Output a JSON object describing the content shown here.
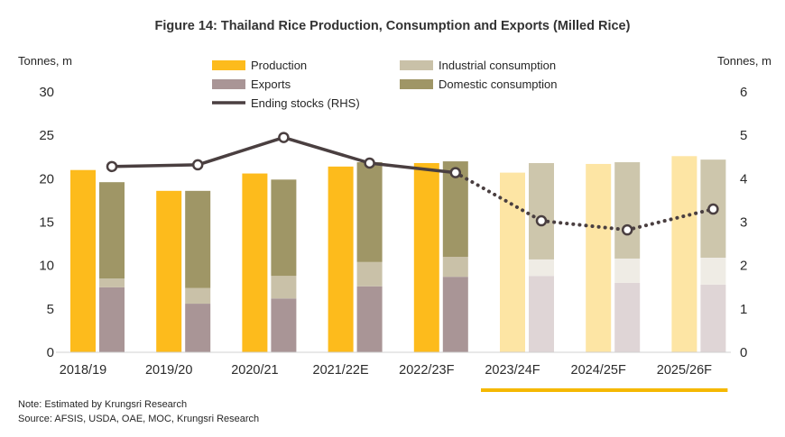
{
  "chart_data": {
    "type": "bar",
    "title": "Figure 14: Thailand Rice Production, Consumption and Exports (Milled Rice)",
    "ylabel_left": "Tonnes, m",
    "ylabel_right": "Tonnes, m",
    "ylim_left": [
      0,
      30
    ],
    "ylim_right": [
      0,
      6
    ],
    "yticks_left": [
      0,
      5,
      10,
      15,
      20,
      25,
      30
    ],
    "yticks_right": [
      0,
      1,
      2,
      3,
      4,
      5,
      6
    ],
    "grid": false,
    "legend_position": "top",
    "categories": [
      "2018/19",
      "2019/20",
      "2020/21",
      "2021/22E",
      "2022/23F",
      "2023/24F",
      "2024/25F",
      "2025/26F"
    ],
    "faded": [
      false,
      false,
      false,
      false,
      false,
      true,
      true,
      true
    ],
    "series": [
      {
        "name": "Production",
        "type": "bar",
        "axis": "left",
        "color": "#fdbb1c",
        "faded_color": "#fde5a4",
        "values": [
          21.0,
          18.6,
          20.6,
          21.4,
          21.8,
          20.7,
          21.7,
          22.6
        ]
      },
      {
        "name": "Exports",
        "type": "stacked_bar",
        "axis": "left",
        "color": "#a99596",
        "faded_color": "#dfd5d6",
        "values": [
          7.5,
          5.6,
          6.2,
          7.6,
          8.7,
          8.8,
          8.0,
          7.8
        ]
      },
      {
        "name": "Industrial consumption",
        "type": "stacked_bar",
        "axis": "left",
        "color": "#c9c1a8",
        "faded_color": "#efece5",
        "values": [
          1.0,
          1.8,
          2.6,
          2.8,
          2.3,
          1.9,
          2.8,
          3.1
        ]
      },
      {
        "name": "Domestic consumption",
        "type": "stacked_bar",
        "axis": "left",
        "color": "#9f9666",
        "faded_color": "#cdc6ac",
        "values": [
          11.1,
          11.2,
          11.1,
          11.5,
          11.0,
          11.1,
          11.1,
          11.3
        ]
      },
      {
        "name": "Ending stocks (RHS)",
        "type": "line",
        "axis": "right",
        "color": "#4a3f40",
        "values": [
          4.28,
          4.32,
          4.95,
          4.36,
          4.14,
          3.03,
          2.82,
          3.3
        ]
      }
    ]
  },
  "notes": {
    "note": "Note: Estimated by Krungsri Research",
    "source": "Source: AFSIS, USDA, OAE, MOC, Krungsri Research"
  },
  "colors": {
    "forecast_underline": "#f5b800",
    "baseline": "#d0d0d0",
    "marker_fill": "#ffffff"
  }
}
